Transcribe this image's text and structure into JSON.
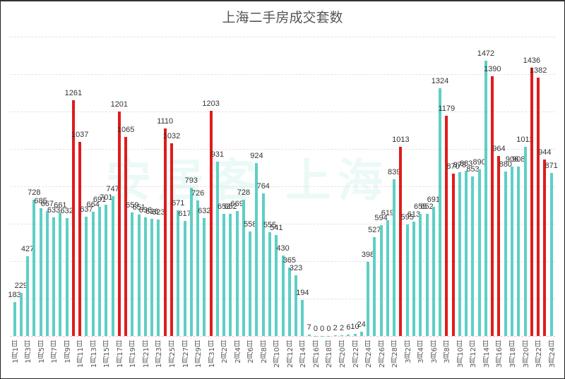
{
  "title": "上海二手房成交套数",
  "watermark": "安居客 上海",
  "colors": {
    "normal": "#5ecfc4",
    "highlight": "#e01b1b"
  },
  "chart_data": {
    "type": "bar",
    "title": "上海二手房成交套数",
    "xlabel": "",
    "ylabel": "",
    "ylim": [
      0,
      1600
    ],
    "grid": true,
    "categories": [
      "1月1日",
      "1月2日",
      "1月3日",
      "1月4日",
      "1月5日",
      "1月6日",
      "1月7日",
      "1月8日",
      "1月9日",
      "1月10日",
      "1月11日",
      "1月12日",
      "1月13日",
      "1月14日",
      "1月15日",
      "1月16日",
      "1月17日",
      "1月18日",
      "1月19日",
      "1月20日",
      "1月21日",
      "1月22日",
      "1月23日",
      "1月24日",
      "1月25日",
      "1月26日",
      "1月27日",
      "1月28日",
      "1月29日",
      "1月30日",
      "1月31日",
      "2月1日",
      "2月2日",
      "2月3日",
      "2月4日",
      "2月5日",
      "2月6日",
      "2月7日",
      "2月8日",
      "2月9日",
      "2月10日",
      "2月11日",
      "2月12日",
      "2月13日",
      "2月14日",
      "2月15日",
      "2月16日",
      "2月17日",
      "2月18日",
      "2月19日",
      "2月20日",
      "2月21日",
      "2月22日",
      "2月23日",
      "2月24日",
      "2月25日",
      "2月26日",
      "2月27日",
      "2月28日",
      "3月1日",
      "3月2日",
      "3月3日",
      "3月4日",
      "3月5日",
      "3月6日",
      "3月7日",
      "3月8日",
      "3月9日",
      "3月10日",
      "3月11日",
      "3月12日",
      "3月13日",
      "3月14日",
      "3月15日",
      "3月16日",
      "3月17日",
      "3月18日",
      "3月19日",
      "3月20日",
      "3月21日",
      "3月22日",
      "3月23日",
      "3月24日"
    ],
    "values": [
      183,
      229,
      427,
      728,
      685,
      667,
      633,
      661,
      632,
      1261,
      1037,
      637,
      664,
      691,
      701,
      747,
      1201,
      1065,
      659,
      651,
      636,
      626,
      623,
      1110,
      1032,
      671,
      617,
      793,
      726,
      632,
      1203,
      931,
      653,
      652,
      669,
      728,
      558,
      924,
      764,
      555,
      541,
      430,
      365,
      323,
      194,
      7,
      0,
      0,
      0,
      2,
      2,
      6,
      10,
      24,
      398,
      527,
      594,
      619,
      839,
      1013,
      595,
      613,
      655,
      652,
      691,
      1324,
      1179,
      870,
      878,
      883,
      853,
      890,
      1472,
      1390,
      964,
      880,
      906,
      908,
      1012,
      1436,
      1382,
      944,
      871
    ],
    "highlight": [
      0,
      0,
      0,
      0,
      0,
      0,
      0,
      0,
      0,
      1,
      1,
      0,
      0,
      0,
      0,
      0,
      1,
      1,
      0,
      0,
      0,
      0,
      0,
      1,
      1,
      0,
      0,
      0,
      0,
      0,
      1,
      0,
      0,
      0,
      0,
      0,
      0,
      0,
      0,
      0,
      0,
      0,
      0,
      0,
      0,
      0,
      0,
      0,
      0,
      0,
      0,
      0,
      0,
      0,
      0,
      0,
      0,
      0,
      0,
      1,
      0,
      0,
      0,
      0,
      0,
      0,
      1,
      1,
      0,
      0,
      0,
      0,
      0,
      1,
      1,
      0,
      0,
      0,
      0,
      1,
      1,
      1,
      0,
      0
    ],
    "x_tick_labels": [
      "1月1日",
      "1月3日",
      "1月5日",
      "1月7日",
      "1月9日",
      "1月11日",
      "1月13日",
      "1月15日",
      "1月17日",
      "1月19日",
      "1月21日",
      "1月23日",
      "1月25日",
      "1月27日",
      "1月29日",
      "1月31日",
      "2月2日",
      "2月4日",
      "2月6日",
      "2月8日",
      "2月10日",
      "2月12日",
      "2月14日",
      "2月16日",
      "2月18日",
      "2月20日",
      "2月22日",
      "2月24日",
      "2月26日",
      "2月28日",
      "3月2日",
      "3月4日",
      "3月6日",
      "3月8日",
      "3月10日",
      "3月12日",
      "3月14日",
      "3月16日",
      "3月18日",
      "3月20日",
      "3月22日",
      "3月24日"
    ]
  }
}
